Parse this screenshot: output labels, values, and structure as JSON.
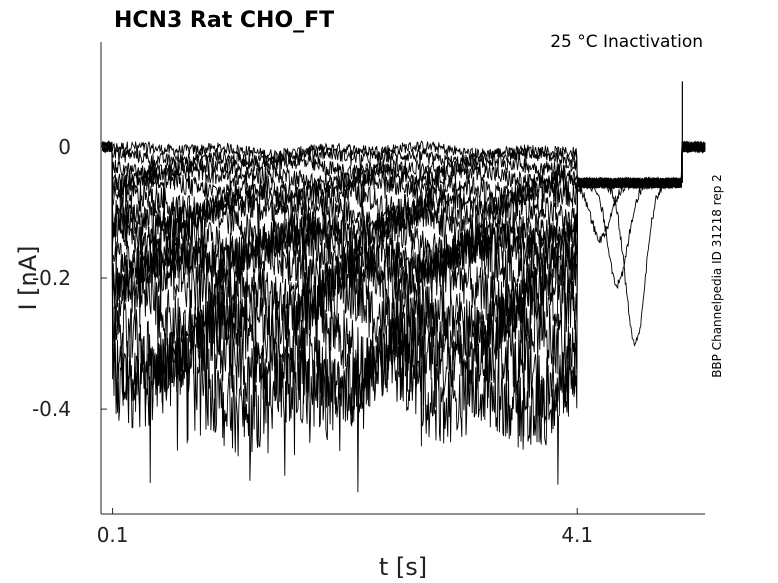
{
  "chart_data": {
    "type": "line",
    "title": "HCN3  Rat  CHO_FT",
    "subtitle": "25 °C  Inactivation",
    "side_note": "BBP Channelpedia ID 31218 rep 2",
    "xlabel": "t [s]",
    "ylabel": "I [nA]",
    "xlim": [
      0.0,
      5.2
    ],
    "ylim": [
      -0.56,
      0.16
    ],
    "x_ticks": [
      {
        "value": 0.1,
        "label": "0.1"
      },
      {
        "value": 4.1,
        "label": "4.1"
      }
    ],
    "y_ticks": [
      {
        "value": 0,
        "label": "0"
      },
      {
        "value": -0.2,
        "label": "-0.2"
      },
      {
        "value": -0.4,
        "label": "-0.4"
      }
    ],
    "grid": false,
    "line_color": "#000000",
    "protocol": {
      "pre_end": 0.1,
      "step_end": 4.1,
      "tail_end": 5.0,
      "end": 5.2,
      "tail_level": -0.055,
      "noise": 0.008,
      "spike_at_end": 0.1
    },
    "series": [
      {
        "step_level": -0.005
      },
      {
        "step_level": -0.015
      },
      {
        "step_level": -0.03
      },
      {
        "step_level": -0.045
      },
      {
        "step_level": -0.06
      },
      {
        "step_level": -0.08
      },
      {
        "step_level": -0.1
      },
      {
        "step_level": -0.12
      },
      {
        "step_level": -0.14
      },
      {
        "step_level": -0.16
      },
      {
        "step_level": -0.18
      },
      {
        "step_level": -0.21
      },
      {
        "step_level": -0.25
      },
      {
        "step_level": -0.29
      },
      {
        "step_level": -0.33
      },
      {
        "step_level": -0.37
      }
    ],
    "tail_dips": [
      {
        "t": 4.3,
        "min": -0.14
      },
      {
        "t": 4.45,
        "min": -0.21
      },
      {
        "t": 4.6,
        "min": -0.3
      }
    ]
  }
}
